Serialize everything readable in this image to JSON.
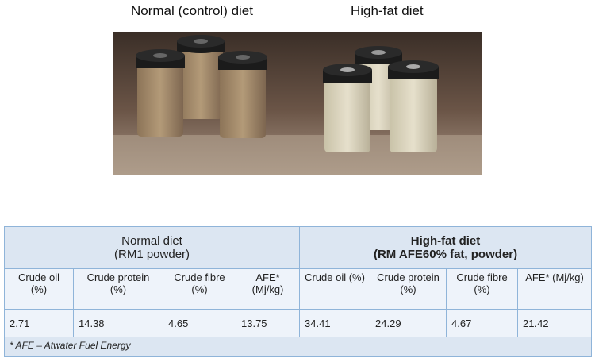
{
  "figure": {
    "labels": [
      "Normal (control) diet",
      "High-fat diet"
    ]
  },
  "table": {
    "groups": [
      {
        "lines": [
          "Normal diet",
          "(RM1 powder)"
        ]
      },
      {
        "lines": [
          "High-fat diet",
          "(RM AFE60% fat, powder)"
        ]
      }
    ],
    "columns": [
      "Crude oil (%)",
      "Crude protein (%)",
      "Crude fibre (%)",
      "AFE* (Mj/kg)",
      "Crude oil (%)",
      "Crude protein (%)",
      "Crude fibre (%)",
      "AFE* (Mj/kg)"
    ],
    "values": [
      2.71,
      14.38,
      4.65,
      13.75,
      34.41,
      24.29,
      4.67,
      21.42
    ],
    "footnote": "* AFE – Atwater Fuel Energy"
  }
}
